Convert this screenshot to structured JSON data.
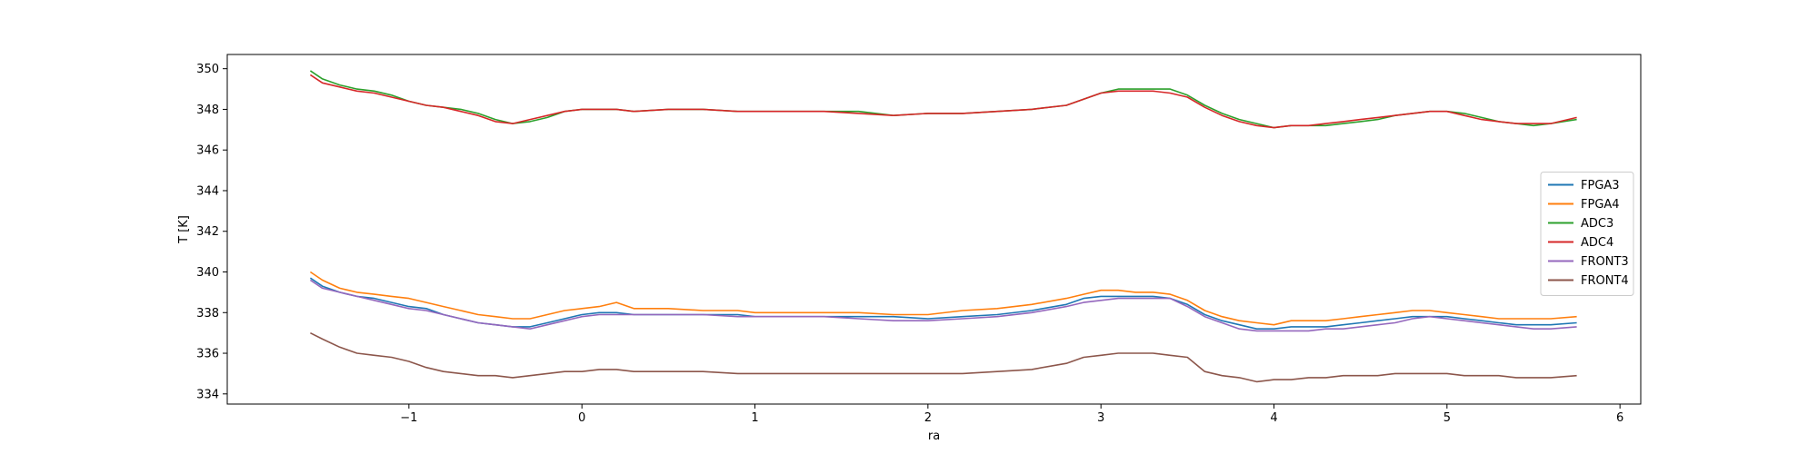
{
  "chart_data": {
    "type": "line",
    "title": "",
    "xlabel": "ra",
    "ylabel": "T [K]",
    "xlim": [
      -2.05,
      6.12
    ],
    "ylim": [
      333.5,
      350.7
    ],
    "xticks": [
      -1,
      0,
      1,
      2,
      3,
      4,
      5,
      6
    ],
    "xtick_labels": [
      "−1",
      "0",
      "1",
      "2",
      "3",
      "4",
      "5",
      "6"
    ],
    "yticks": [
      334,
      336,
      338,
      340,
      342,
      344,
      346,
      348,
      350
    ],
    "ytick_labels": [
      "334",
      "336",
      "338",
      "340",
      "342",
      "344",
      "346",
      "348",
      "350"
    ],
    "grid": false,
    "legend_position": "center-right",
    "x": [
      -1.57,
      -1.5,
      -1.4,
      -1.3,
      -1.2,
      -1.1,
      -1.0,
      -0.9,
      -0.8,
      -0.7,
      -0.6,
      -0.5,
      -0.4,
      -0.3,
      -0.2,
      -0.1,
      0.0,
      0.1,
      0.2,
      0.3,
      0.5,
      0.7,
      0.9,
      1.0,
      1.2,
      1.4,
      1.6,
      1.8,
      2.0,
      2.2,
      2.4,
      2.6,
      2.8,
      2.9,
      3.0,
      3.1,
      3.2,
      3.3,
      3.4,
      3.5,
      3.6,
      3.7,
      3.8,
      3.9,
      4.0,
      4.1,
      4.2,
      4.3,
      4.4,
      4.5,
      4.6,
      4.7,
      4.8,
      4.9,
      5.0,
      5.1,
      5.2,
      5.3,
      5.4,
      5.5,
      5.6,
      5.75
    ],
    "series": [
      {
        "name": "FPGA3",
        "color": "#1f77b4",
        "values": [
          339.7,
          339.3,
          339.0,
          338.8,
          338.7,
          338.5,
          338.3,
          338.2,
          337.9,
          337.7,
          337.5,
          337.4,
          337.3,
          337.3,
          337.5,
          337.7,
          337.9,
          338.0,
          338.0,
          337.9,
          337.9,
          337.9,
          337.9,
          337.8,
          337.8,
          337.8,
          337.8,
          337.8,
          337.7,
          337.8,
          337.9,
          338.1,
          338.4,
          338.7,
          338.8,
          338.8,
          338.8,
          338.8,
          338.7,
          338.4,
          337.9,
          337.6,
          337.4,
          337.2,
          337.2,
          337.3,
          337.3,
          337.3,
          337.4,
          337.5,
          337.6,
          337.7,
          337.8,
          337.8,
          337.8,
          337.7,
          337.6,
          337.5,
          337.4,
          337.4,
          337.4,
          337.5
        ]
      },
      {
        "name": "FPGA4",
        "color": "#ff7f0e",
        "values": [
          340.0,
          339.6,
          339.2,
          339.0,
          338.9,
          338.8,
          338.7,
          338.5,
          338.3,
          338.1,
          337.9,
          337.8,
          337.7,
          337.7,
          337.9,
          338.1,
          338.2,
          338.3,
          338.5,
          338.2,
          338.2,
          338.1,
          338.1,
          338.0,
          338.0,
          338.0,
          338.0,
          337.9,
          337.9,
          338.1,
          338.2,
          338.4,
          338.7,
          338.9,
          339.1,
          339.1,
          339.0,
          339.0,
          338.9,
          338.6,
          338.1,
          337.8,
          337.6,
          337.5,
          337.4,
          337.6,
          337.6,
          337.6,
          337.7,
          337.8,
          337.9,
          338.0,
          338.1,
          338.1,
          338.0,
          337.9,
          337.8,
          337.7,
          337.7,
          337.7,
          337.7,
          337.8
        ]
      },
      {
        "name": "ADC3",
        "color": "#2ca02c",
        "values": [
          349.9,
          349.5,
          349.2,
          349.0,
          348.9,
          348.7,
          348.4,
          348.2,
          348.1,
          348.0,
          347.8,
          347.5,
          347.3,
          347.4,
          347.6,
          347.9,
          348.0,
          348.0,
          348.0,
          347.9,
          348.0,
          348.0,
          347.9,
          347.9,
          347.9,
          347.9,
          347.9,
          347.7,
          347.8,
          347.8,
          347.9,
          348.0,
          348.2,
          348.5,
          348.8,
          349.0,
          349.0,
          349.0,
          349.0,
          348.7,
          348.2,
          347.8,
          347.5,
          347.3,
          347.1,
          347.2,
          347.2,
          347.2,
          347.3,
          347.4,
          347.5,
          347.7,
          347.8,
          347.9,
          347.9,
          347.8,
          347.6,
          347.4,
          347.3,
          347.2,
          347.3,
          347.5
        ]
      },
      {
        "name": "ADC4",
        "color": "#d62728",
        "values": [
          349.7,
          349.3,
          349.1,
          348.9,
          348.8,
          348.6,
          348.4,
          348.2,
          348.1,
          347.9,
          347.7,
          347.4,
          347.3,
          347.5,
          347.7,
          347.9,
          348.0,
          348.0,
          348.0,
          347.9,
          348.0,
          348.0,
          347.9,
          347.9,
          347.9,
          347.9,
          347.8,
          347.7,
          347.8,
          347.8,
          347.9,
          348.0,
          348.2,
          348.5,
          348.8,
          348.9,
          348.9,
          348.9,
          348.8,
          348.6,
          348.1,
          347.7,
          347.4,
          347.2,
          347.1,
          347.2,
          347.2,
          347.3,
          347.4,
          347.5,
          347.6,
          347.7,
          347.8,
          347.9,
          347.9,
          347.7,
          347.5,
          347.4,
          347.3,
          347.3,
          347.3,
          347.6
        ]
      },
      {
        "name": "FRONT3",
        "color": "#9467bd",
        "values": [
          339.6,
          339.2,
          339.0,
          338.8,
          338.6,
          338.4,
          338.2,
          338.1,
          337.9,
          337.7,
          337.5,
          337.4,
          337.3,
          337.2,
          337.4,
          337.6,
          337.8,
          337.9,
          337.9,
          337.9,
          337.9,
          337.9,
          337.8,
          337.8,
          337.8,
          337.8,
          337.7,
          337.6,
          337.6,
          337.7,
          337.8,
          338.0,
          338.3,
          338.5,
          338.6,
          338.7,
          338.7,
          338.7,
          338.7,
          338.3,
          337.8,
          337.5,
          337.2,
          337.1,
          337.1,
          337.1,
          337.1,
          337.2,
          337.2,
          337.3,
          337.4,
          337.5,
          337.7,
          337.8,
          337.7,
          337.6,
          337.5,
          337.4,
          337.3,
          337.2,
          337.2,
          337.3
        ]
      },
      {
        "name": "FRONT4",
        "color": "#8c564b",
        "values": [
          337.0,
          336.7,
          336.3,
          336.0,
          335.9,
          335.8,
          335.6,
          335.3,
          335.1,
          335.0,
          334.9,
          334.9,
          334.8,
          334.9,
          335.0,
          335.1,
          335.1,
          335.2,
          335.2,
          335.1,
          335.1,
          335.1,
          335.0,
          335.0,
          335.0,
          335.0,
          335.0,
          335.0,
          335.0,
          335.0,
          335.1,
          335.2,
          335.5,
          335.8,
          335.9,
          336.0,
          336.0,
          336.0,
          335.9,
          335.8,
          335.1,
          334.9,
          334.8,
          334.6,
          334.7,
          334.7,
          334.8,
          334.8,
          334.9,
          334.9,
          334.9,
          335.0,
          335.0,
          335.0,
          335.0,
          334.9,
          334.9,
          334.9,
          334.8,
          334.8,
          334.8,
          334.9
        ]
      }
    ]
  }
}
